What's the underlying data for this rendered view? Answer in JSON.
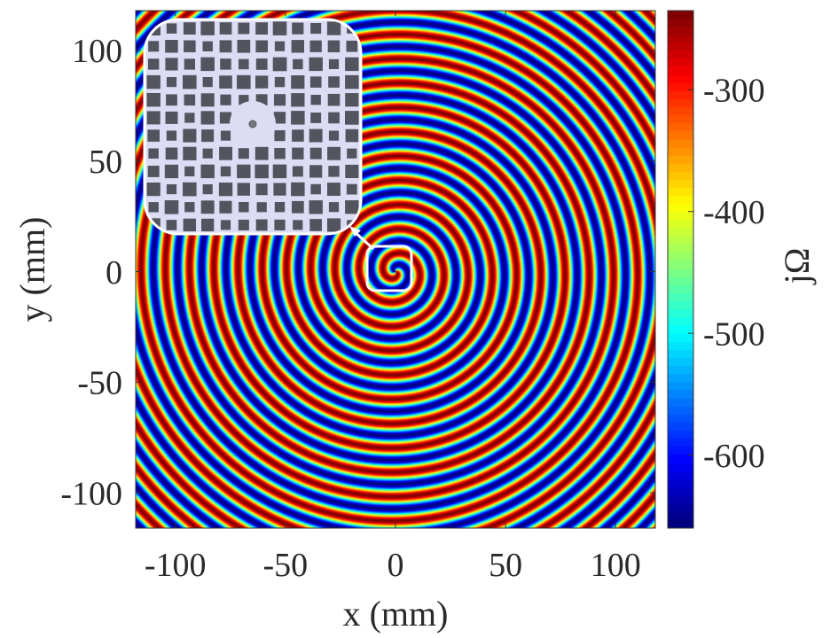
{
  "chart_data": {
    "type": "heatmap",
    "title": "",
    "xlabel": "x (mm)",
    "ylabel": "y (mm)",
    "xlim": [
      -118,
      118
    ],
    "ylim": [
      -116,
      118
    ],
    "xticks": [
      -100,
      -50,
      0,
      50,
      100
    ],
    "yticks": [
      100,
      50,
      0,
      -50,
      -100
    ],
    "xtick_labels": [
      "-100",
      "-50",
      "0",
      "50",
      "100"
    ],
    "ytick_labels": [
      "100",
      "50",
      "0",
      "-50",
      "-100"
    ],
    "colormap": "jet",
    "colorbar": {
      "label": "jΩ",
      "range": [
        -660,
        -235
      ],
      "ticks": [
        -300,
        -400,
        -500,
        -600
      ],
      "tick_labels": [
        "-300",
        "-400",
        "-500",
        "-600"
      ]
    },
    "field": {
      "pattern": "single-arm spiral",
      "center": [
        0,
        0
      ],
      "ring_spacing_mm": 11,
      "turns_visible": 15
    },
    "annotations": [
      {
        "type": "marker-box",
        "center": [
          0,
          0
        ],
        "description": "rounded square marking the spiral center"
      },
      {
        "type": "arrow",
        "from": [
          0,
          0
        ],
        "to": "inset"
      },
      {
        "type": "inset",
        "content": "metasurface unit array: square patches of varying size around a central circular feed"
      }
    ]
  },
  "colors": {
    "inset_background": "#dcdcf5",
    "inset_patch": "#54545f",
    "annotation": "#ffffff"
  }
}
